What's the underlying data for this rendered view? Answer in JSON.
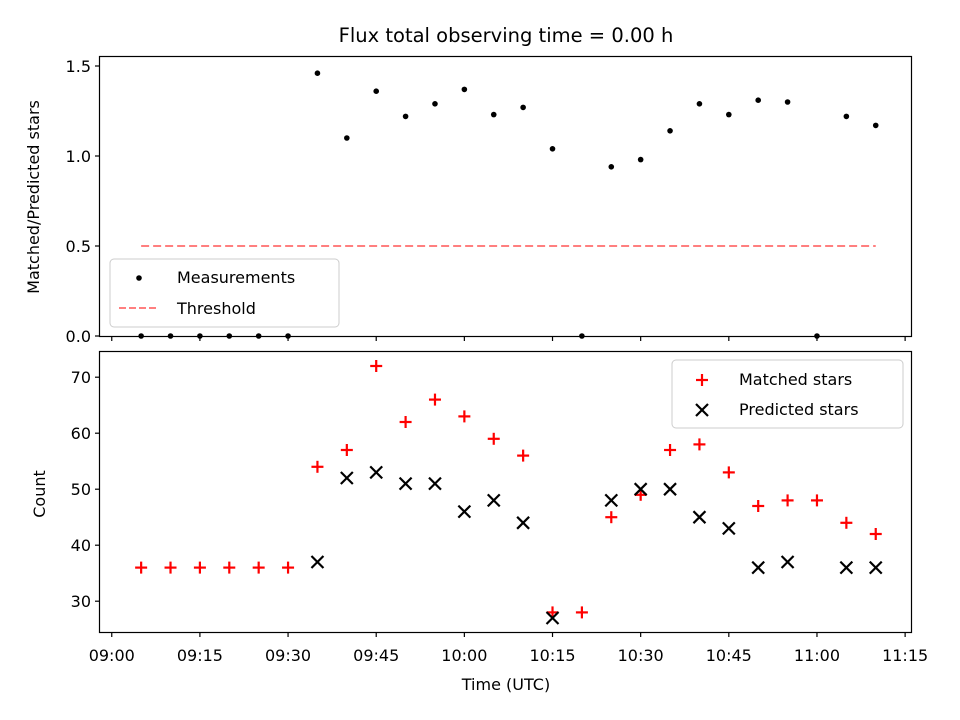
{
  "chart_data": [
    {
      "type": "scatter",
      "title": "Flux total observing time = 0.00 h",
      "xlabel": "",
      "ylabel": "Matched/Predicted stars",
      "ylim": [
        0,
        1.55
      ],
      "xlim": [
        "08:58",
        "11:16"
      ],
      "yticks": [
        "0.0",
        "0.5",
        "1.0",
        "1.5"
      ],
      "legend_position": "lower-left",
      "series": [
        {
          "name": "Measurements",
          "color": "#000000",
          "marker": "dot",
          "points": [
            [
              "09:05",
              0.0
            ],
            [
              "09:10",
              0.0
            ],
            [
              "09:15",
              0.0
            ],
            [
              "09:20",
              0.0
            ],
            [
              "09:25",
              0.0
            ],
            [
              "09:30",
              0.0
            ],
            [
              "09:35",
              1.46
            ],
            [
              "09:40",
              1.1
            ],
            [
              "09:45",
              1.36
            ],
            [
              "09:50",
              1.22
            ],
            [
              "09:55",
              1.29
            ],
            [
              "10:00",
              1.37
            ],
            [
              "10:05",
              1.23
            ],
            [
              "10:10",
              1.27
            ],
            [
              "10:15",
              1.04
            ],
            [
              "10:20",
              0.0
            ],
            [
              "10:25",
              0.94
            ],
            [
              "10:30",
              0.98
            ],
            [
              "10:35",
              1.14
            ],
            [
              "10:40",
              1.29
            ],
            [
              "10:45",
              1.23
            ],
            [
              "10:50",
              1.31
            ],
            [
              "10:55",
              1.3
            ],
            [
              "11:00",
              0.0
            ],
            [
              "11:05",
              1.22
            ],
            [
              "11:10",
              1.17
            ]
          ]
        },
        {
          "name": "Threshold",
          "color": "#ff7f7f",
          "line": "dashed",
          "points": [
            [
              "09:05",
              0.5
            ],
            [
              "11:10",
              0.5
            ]
          ]
        }
      ]
    },
    {
      "type": "scatter",
      "title": "",
      "xlabel": "Time (UTC)",
      "ylabel": "Count",
      "ylim": [
        24.5,
        74.5
      ],
      "xlim": [
        "08:58",
        "11:16"
      ],
      "yticks": [
        "30",
        "40",
        "50",
        "60",
        "70"
      ],
      "xticks": [
        "09:00",
        "09:15",
        "09:30",
        "09:45",
        "10:00",
        "10:15",
        "10:30",
        "10:45",
        "11:00",
        "11:15"
      ],
      "legend_position": "top-right",
      "series": [
        {
          "name": "Matched stars",
          "color": "#ff0000",
          "marker": "plus",
          "points": [
            [
              "09:05",
              36
            ],
            [
              "09:10",
              36
            ],
            [
              "09:15",
              36
            ],
            [
              "09:20",
              36
            ],
            [
              "09:25",
              36
            ],
            [
              "09:30",
              36
            ],
            [
              "09:35",
              54
            ],
            [
              "09:40",
              57
            ],
            [
              "09:45",
              72
            ],
            [
              "09:50",
              62
            ],
            [
              "09:55",
              66
            ],
            [
              "10:00",
              63
            ],
            [
              "10:05",
              59
            ],
            [
              "10:10",
              56
            ],
            [
              "10:15",
              28
            ],
            [
              "10:20",
              28
            ],
            [
              "10:25",
              45
            ],
            [
              "10:30",
              49
            ],
            [
              "10:35",
              57
            ],
            [
              "10:40",
              58
            ],
            [
              "10:45",
              53
            ],
            [
              "10:50",
              47
            ],
            [
              "10:55",
              48
            ],
            [
              "11:00",
              48
            ],
            [
              "11:05",
              44
            ],
            [
              "11:10",
              42
            ]
          ]
        },
        {
          "name": "Predicted stars",
          "color": "#000000",
          "marker": "x",
          "points": [
            [
              "09:35",
              37
            ],
            [
              "09:40",
              52
            ],
            [
              "09:45",
              53
            ],
            [
              "09:50",
              51
            ],
            [
              "09:55",
              51
            ],
            [
              "10:00",
              46
            ],
            [
              "10:05",
              48
            ],
            [
              "10:10",
              44
            ],
            [
              "10:15",
              27
            ],
            [
              "10:25",
              48
            ],
            [
              "10:30",
              50
            ],
            [
              "10:35",
              50
            ],
            [
              "10:40",
              45
            ],
            [
              "10:45",
              43
            ],
            [
              "10:50",
              36
            ],
            [
              "10:55",
              37
            ],
            [
              "11:05",
              36
            ],
            [
              "11:10",
              36
            ]
          ]
        }
      ]
    }
  ]
}
